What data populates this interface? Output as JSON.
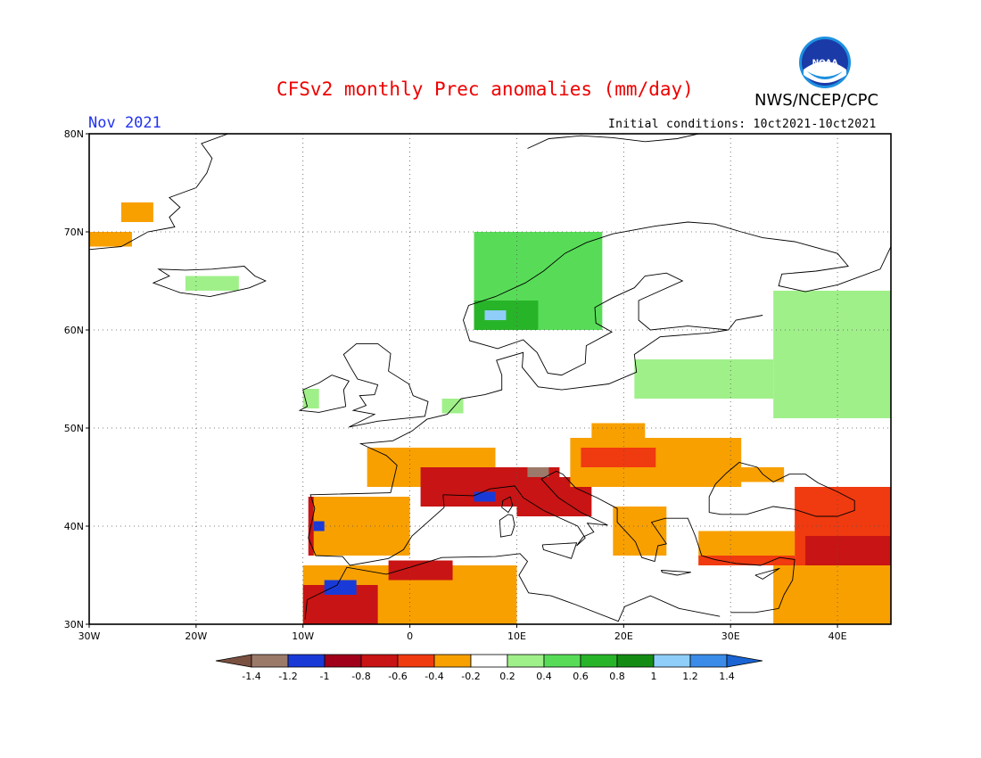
{
  "header": {
    "title": "CFSv2 monthly Prec anomalies (mm/day)",
    "agency": "NWS/NCEP/CPC",
    "logo_text": "NOAA",
    "period": "Nov 2021",
    "initial_conditions": "Initial conditions: 10ct2021-10ct2021"
  },
  "map": {
    "region": "Europe",
    "lon_range": [
      -30,
      45
    ],
    "lat_range": [
      30,
      80
    ],
    "lat_ticks": [
      "30N",
      "40N",
      "50N",
      "60N",
      "70N",
      "80N"
    ],
    "lon_ticks": [
      "30W",
      "20W",
      "10W",
      "0",
      "10E",
      "20E",
      "30E",
      "40E"
    ],
    "anomaly_regions": [
      {
        "name": "greenland-coast",
        "level": -0.3,
        "lon": [
          -30,
          -26
        ],
        "lat": [
          68.5,
          70
        ]
      },
      {
        "name": "greenland-east",
        "level": -0.3,
        "lon": [
          -27,
          -24
        ],
        "lat": [
          71,
          73
        ]
      },
      {
        "name": "iceland",
        "level": 0.3,
        "lon": [
          -21,
          -16
        ],
        "lat": [
          64,
          65.5
        ]
      },
      {
        "name": "ireland",
        "level": 0.3,
        "lon": [
          -10,
          -8.5
        ],
        "lat": [
          52,
          54
        ]
      },
      {
        "name": "norway-coast",
        "level": 0.5,
        "lon": [
          6,
          18
        ],
        "lat": [
          60,
          70
        ]
      },
      {
        "name": "norway-wet",
        "level": 0.7,
        "lon": [
          6,
          12
        ],
        "lat": [
          60,
          63
        ]
      },
      {
        "name": "norway-blue",
        "level": 1.1,
        "lon": [
          7,
          9
        ],
        "lat": [
          61,
          62
        ]
      },
      {
        "name": "baltic-green",
        "level": 0.3,
        "lon": [
          21,
          34
        ],
        "lat": [
          53,
          57
        ]
      },
      {
        "name": "russia-green",
        "level": 0.3,
        "lon": [
          34,
          45
        ],
        "lat": [
          51,
          64
        ]
      },
      {
        "name": "netherlands",
        "level": 0.3,
        "lon": [
          3,
          5
        ],
        "lat": [
          51.5,
          53
        ]
      },
      {
        "name": "france-dry",
        "level": -0.3,
        "lon": [
          -4,
          8
        ],
        "lat": [
          44,
          48
        ]
      },
      {
        "name": "alps-dry",
        "level": -0.7,
        "lon": [
          1,
          14
        ],
        "lat": [
          42,
          46
        ]
      },
      {
        "name": "alps-brown",
        "level": -1.3,
        "lon": [
          11,
          13
        ],
        "lat": [
          45,
          46
        ]
      },
      {
        "name": "alps-blue",
        "level": -1.1,
        "lon": [
          6,
          8
        ],
        "lat": [
          42.5,
          43.5
        ]
      },
      {
        "name": "italy-dry",
        "level": -0.7,
        "lon": [
          10,
          17
        ],
        "lat": [
          41,
          45
        ]
      },
      {
        "name": "central-europe",
        "level": -0.3,
        "lon": [
          15,
          31
        ],
        "lat": [
          44,
          49
        ]
      },
      {
        "name": "balkans-dry",
        "level": -0.5,
        "lon": [
          16,
          23
        ],
        "lat": [
          46,
          48
        ]
      },
      {
        "name": "poland-dry",
        "level": -0.3,
        "lon": [
          17,
          22
        ],
        "lat": [
          49,
          50.5
        ]
      },
      {
        "name": "iberia-west",
        "level": -0.7,
        "lon": [
          -9.5,
          -7.5
        ],
        "lat": [
          37,
          43
        ]
      },
      {
        "name": "iberia-dry",
        "level": -0.3,
        "lon": [
          -9,
          0
        ],
        "lat": [
          37,
          43
        ]
      },
      {
        "name": "iberia-blue",
        "level": -1.1,
        "lon": [
          -9,
          -8
        ],
        "lat": [
          39.5,
          40.5
        ]
      },
      {
        "name": "north-africa",
        "level": -0.3,
        "lon": [
          -10,
          10
        ],
        "lat": [
          30,
          36
        ]
      },
      {
        "name": "morocco-red",
        "level": -0.7,
        "lon": [
          -10,
          -3
        ],
        "lat": [
          30,
          34
        ]
      },
      {
        "name": "morocco-blue",
        "level": -1.1,
        "lon": [
          -8,
          -5
        ],
        "lat": [
          33,
          34.5
        ]
      },
      {
        "name": "algeria-red",
        "level": -0.7,
        "lon": [
          -2,
          4
        ],
        "lat": [
          34.5,
          36.5
        ]
      },
      {
        "name": "greece-dry",
        "level": -0.3,
        "lon": [
          19,
          24
        ],
        "lat": [
          37,
          42
        ]
      },
      {
        "name": "turkey-dry",
        "level": -0.3,
        "lon": [
          27,
          36
        ],
        "lat": [
          36,
          39.5
        ]
      },
      {
        "name": "turkey-red",
        "level": -0.5,
        "lon": [
          27,
          36
        ],
        "lat": [
          36,
          37
        ]
      },
      {
        "name": "caucasus-dry",
        "level": -0.5,
        "lon": [
          36,
          45
        ],
        "lat": [
          35,
          44
        ]
      },
      {
        "name": "caucasus-red",
        "level": -0.7,
        "lon": [
          37,
          45
        ],
        "lat": [
          36,
          39
        ]
      },
      {
        "name": "levant-dry",
        "level": -0.3,
        "lon": [
          34,
          45
        ],
        "lat": [
          30,
          36
        ]
      },
      {
        "name": "black-sea-dry",
        "level": -0.3,
        "lon": [
          29,
          35
        ],
        "lat": [
          44.5,
          46
        ]
      }
    ]
  },
  "colorbar": {
    "ticks": [
      "-1.4",
      "-1.2",
      "-1",
      "-0.8",
      "-0.6",
      "-0.4",
      "-0.2",
      "0.2",
      "0.4",
      "0.6",
      "0.8",
      "1",
      "1.2",
      "1.4"
    ],
    "colors": [
      "#7a5040",
      "#9c7a6a",
      "#1a3ad8",
      "#a0001a",
      "#c81414",
      "#f03a10",
      "#f8a000",
      "#ffffff",
      "#a0f08a",
      "#58dc58",
      "#28b428",
      "#148c14",
      "#8ecef8",
      "#3a8ce8",
      "#1a64d4"
    ]
  }
}
